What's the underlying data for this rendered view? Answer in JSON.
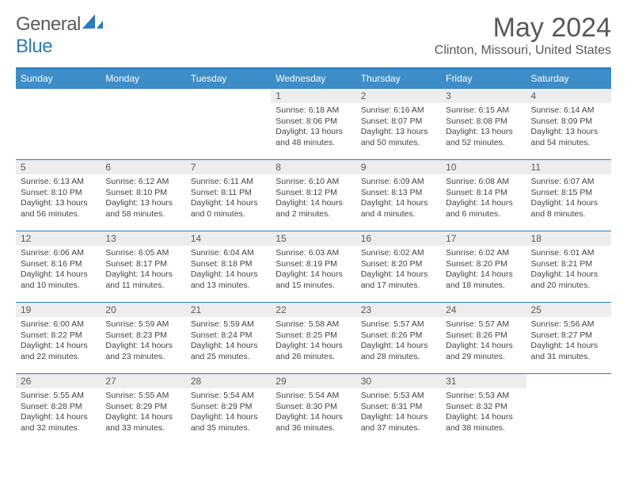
{
  "brand": {
    "name_a": "General",
    "name_b": "Blue"
  },
  "header": {
    "title": "May 2024",
    "subtitle": "Clinton, Missouri, United States"
  },
  "styling": {
    "header_bg": "#3d8dc9",
    "header_border": "#2b7bbf",
    "daynum_bg": "#ededed",
    "text_color": "#595959",
    "page_bg": "#ffffff",
    "title_fontsize": 34,
    "subtitle_fontsize": 16,
    "th_fontsize": 12,
    "body_fontsize": 10.5
  },
  "day_headers": [
    "Sunday",
    "Monday",
    "Tuesday",
    "Wednesday",
    "Thursday",
    "Friday",
    "Saturday"
  ],
  "weeks": [
    [
      null,
      null,
      null,
      {
        "n": "1",
        "sr": "6:18 AM",
        "ss": "8:06 PM",
        "dl": "13 hours and 48 minutes."
      },
      {
        "n": "2",
        "sr": "6:16 AM",
        "ss": "8:07 PM",
        "dl": "13 hours and 50 minutes."
      },
      {
        "n": "3",
        "sr": "6:15 AM",
        "ss": "8:08 PM",
        "dl": "13 hours and 52 minutes."
      },
      {
        "n": "4",
        "sr": "6:14 AM",
        "ss": "8:09 PM",
        "dl": "13 hours and 54 minutes."
      }
    ],
    [
      {
        "n": "5",
        "sr": "6:13 AM",
        "ss": "8:10 PM",
        "dl": "13 hours and 56 minutes."
      },
      {
        "n": "6",
        "sr": "6:12 AM",
        "ss": "8:10 PM",
        "dl": "13 hours and 58 minutes."
      },
      {
        "n": "7",
        "sr": "6:11 AM",
        "ss": "8:11 PM",
        "dl": "14 hours and 0 minutes."
      },
      {
        "n": "8",
        "sr": "6:10 AM",
        "ss": "8:12 PM",
        "dl": "14 hours and 2 minutes."
      },
      {
        "n": "9",
        "sr": "6:09 AM",
        "ss": "8:13 PM",
        "dl": "14 hours and 4 minutes."
      },
      {
        "n": "10",
        "sr": "6:08 AM",
        "ss": "8:14 PM",
        "dl": "14 hours and 6 minutes."
      },
      {
        "n": "11",
        "sr": "6:07 AM",
        "ss": "8:15 PM",
        "dl": "14 hours and 8 minutes."
      }
    ],
    [
      {
        "n": "12",
        "sr": "6:06 AM",
        "ss": "8:16 PM",
        "dl": "14 hours and 10 minutes."
      },
      {
        "n": "13",
        "sr": "6:05 AM",
        "ss": "8:17 PM",
        "dl": "14 hours and 11 minutes."
      },
      {
        "n": "14",
        "sr": "6:04 AM",
        "ss": "8:18 PM",
        "dl": "14 hours and 13 minutes."
      },
      {
        "n": "15",
        "sr": "6:03 AM",
        "ss": "8:19 PM",
        "dl": "14 hours and 15 minutes."
      },
      {
        "n": "16",
        "sr": "6:02 AM",
        "ss": "8:20 PM",
        "dl": "14 hours and 17 minutes."
      },
      {
        "n": "17",
        "sr": "6:02 AM",
        "ss": "8:20 PM",
        "dl": "14 hours and 18 minutes."
      },
      {
        "n": "18",
        "sr": "6:01 AM",
        "ss": "8:21 PM",
        "dl": "14 hours and 20 minutes."
      }
    ],
    [
      {
        "n": "19",
        "sr": "6:00 AM",
        "ss": "8:22 PM",
        "dl": "14 hours and 22 minutes."
      },
      {
        "n": "20",
        "sr": "5:59 AM",
        "ss": "8:23 PM",
        "dl": "14 hours and 23 minutes."
      },
      {
        "n": "21",
        "sr": "5:59 AM",
        "ss": "8:24 PM",
        "dl": "14 hours and 25 minutes."
      },
      {
        "n": "22",
        "sr": "5:58 AM",
        "ss": "8:25 PM",
        "dl": "14 hours and 26 minutes."
      },
      {
        "n": "23",
        "sr": "5:57 AM",
        "ss": "8:26 PM",
        "dl": "14 hours and 28 minutes."
      },
      {
        "n": "24",
        "sr": "5:57 AM",
        "ss": "8:26 PM",
        "dl": "14 hours and 29 minutes."
      },
      {
        "n": "25",
        "sr": "5:56 AM",
        "ss": "8:27 PM",
        "dl": "14 hours and 31 minutes."
      }
    ],
    [
      {
        "n": "26",
        "sr": "5:55 AM",
        "ss": "8:28 PM",
        "dl": "14 hours and 32 minutes."
      },
      {
        "n": "27",
        "sr": "5:55 AM",
        "ss": "8:29 PM",
        "dl": "14 hours and 33 minutes."
      },
      {
        "n": "28",
        "sr": "5:54 AM",
        "ss": "8:29 PM",
        "dl": "14 hours and 35 minutes."
      },
      {
        "n": "29",
        "sr": "5:54 AM",
        "ss": "8:30 PM",
        "dl": "14 hours and 36 minutes."
      },
      {
        "n": "30",
        "sr": "5:53 AM",
        "ss": "8:31 PM",
        "dl": "14 hours and 37 minutes."
      },
      {
        "n": "31",
        "sr": "5:53 AM",
        "ss": "8:32 PM",
        "dl": "14 hours and 38 minutes."
      },
      null
    ]
  ],
  "labels": {
    "sunrise": "Sunrise:",
    "sunset": "Sunset:",
    "daylight": "Daylight:"
  }
}
